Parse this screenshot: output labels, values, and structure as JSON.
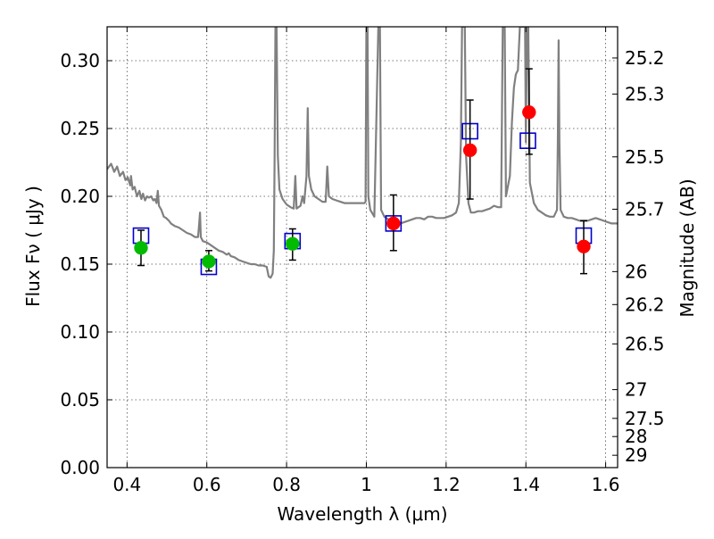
{
  "chart_data": {
    "type": "scatter",
    "xlabel": "Wavelength  λ (μm)",
    "ylabel_left": "Flux  Fν  ( μJy )",
    "ylabel_right": "Magnitude (AB)",
    "xlim": [
      0.35,
      1.63
    ],
    "ylim": [
      0.0,
      0.325
    ],
    "grid": true,
    "xticks": [
      0.4,
      0.6,
      0.8,
      1.0,
      1.2,
      1.4,
      1.6
    ],
    "xtick_labels": [
      "0.4",
      "0.6",
      "0.8",
      "1",
      "1.2",
      "1.4",
      "1.6"
    ],
    "yticks": [
      0.0,
      0.05,
      0.1,
      0.15,
      0.2,
      0.25,
      0.3
    ],
    "ytick_labels": [
      "0.00",
      "0.05",
      "0.10",
      "0.15",
      "0.20",
      "0.25",
      "0.30"
    ],
    "right_ticks": [
      {
        "label": "25.2",
        "flux": 0.302
      },
      {
        "label": "25.3",
        "flux": 0.2754
      },
      {
        "label": "25.5",
        "flux": 0.2291
      },
      {
        "label": "25.7",
        "flux": 0.1905
      },
      {
        "label": "26",
        "flux": 0.1445
      },
      {
        "label": "26.2",
        "flux": 0.1202
      },
      {
        "label": "26.5",
        "flux": 0.0912
      },
      {
        "label": "27",
        "flux": 0.0575
      },
      {
        "label": "27.5",
        "flux": 0.0363
      },
      {
        "label": "28",
        "flux": 0.0229
      },
      {
        "label": "29",
        "flux": 0.0091
      }
    ],
    "colors": {
      "model": "#808080",
      "observed_optical": "#00bb00",
      "observed_ir": "#ff0000",
      "model_photometry": "#0000cc",
      "errorbar": "#000000"
    },
    "series": [
      {
        "id": "model_sed",
        "kind": "line",
        "points": [
          [
            0.35,
            0.22
          ],
          [
            0.36,
            0.224
          ],
          [
            0.368,
            0.218
          ],
          [
            0.375,
            0.222
          ],
          [
            0.382,
            0.215
          ],
          [
            0.39,
            0.218
          ],
          [
            0.396,
            0.212
          ],
          [
            0.402,
            0.214
          ],
          [
            0.408,
            0.208
          ],
          [
            0.41,
            0.215
          ],
          [
            0.414,
            0.205
          ],
          [
            0.419,
            0.207
          ],
          [
            0.425,
            0.2
          ],
          [
            0.431,
            0.204
          ],
          [
            0.436,
            0.198
          ],
          [
            0.44,
            0.202
          ],
          [
            0.445,
            0.197
          ],
          [
            0.45,
            0.2
          ],
          [
            0.455,
            0.199
          ],
          [
            0.46,
            0.2
          ],
          [
            0.466,
            0.197
          ],
          [
            0.47,
            0.198
          ],
          [
            0.474,
            0.195
          ],
          [
            0.477,
            0.204
          ],
          [
            0.48,
            0.193
          ],
          [
            0.486,
            0.19
          ],
          [
            0.492,
            0.185
          ],
          [
            0.498,
            0.184
          ],
          [
            0.505,
            0.182
          ],
          [
            0.51,
            0.18
          ],
          [
            0.52,
            0.178
          ],
          [
            0.53,
            0.177
          ],
          [
            0.54,
            0.175
          ],
          [
            0.55,
            0.173
          ],
          [
            0.56,
            0.172
          ],
          [
            0.57,
            0.17
          ],
          [
            0.578,
            0.17
          ],
          [
            0.581,
            0.18
          ],
          [
            0.583,
            0.188
          ],
          [
            0.585,
            0.17
          ],
          [
            0.59,
            0.167
          ],
          [
            0.6,
            0.166
          ],
          [
            0.61,
            0.164
          ],
          [
            0.62,
            0.162
          ],
          [
            0.63,
            0.16
          ],
          [
            0.64,
            0.159
          ],
          [
            0.65,
            0.157
          ],
          [
            0.655,
            0.158
          ],
          [
            0.66,
            0.156
          ],
          [
            0.67,
            0.155
          ],
          [
            0.68,
            0.153
          ],
          [
            0.69,
            0.152
          ],
          [
            0.7,
            0.151
          ],
          [
            0.71,
            0.15
          ],
          [
            0.72,
            0.15
          ],
          [
            0.73,
            0.149
          ],
          [
            0.74,
            0.149
          ],
          [
            0.75,
            0.148
          ],
          [
            0.755,
            0.141
          ],
          [
            0.76,
            0.14
          ],
          [
            0.765,
            0.143
          ],
          [
            0.768,
            0.16
          ],
          [
            0.77,
            0.23
          ],
          [
            0.772,
            0.325
          ],
          [
            0.775,
            0.325
          ],
          [
            0.778,
            0.23
          ],
          [
            0.782,
            0.205
          ],
          [
            0.79,
            0.198
          ],
          [
            0.8,
            0.194
          ],
          [
            0.81,
            0.192
          ],
          [
            0.818,
            0.191
          ],
          [
            0.822,
            0.215
          ],
          [
            0.825,
            0.191
          ],
          [
            0.835,
            0.193
          ],
          [
            0.84,
            0.2
          ],
          [
            0.844,
            0.195
          ],
          [
            0.85,
            0.215
          ],
          [
            0.853,
            0.265
          ],
          [
            0.856,
            0.215
          ],
          [
            0.862,
            0.205
          ],
          [
            0.87,
            0.2
          ],
          [
            0.88,
            0.198
          ],
          [
            0.89,
            0.196
          ],
          [
            0.898,
            0.196
          ],
          [
            0.902,
            0.222
          ],
          [
            0.906,
            0.2
          ],
          [
            0.915,
            0.198
          ],
          [
            0.925,
            0.197
          ],
          [
            0.935,
            0.196
          ],
          [
            0.945,
            0.195
          ],
          [
            0.955,
            0.195
          ],
          [
            0.965,
            0.195
          ],
          [
            0.975,
            0.195
          ],
          [
            0.985,
            0.195
          ],
          [
            0.995,
            0.195
          ],
          [
            0.998,
            0.196
          ],
          [
            1.0,
            0.325
          ],
          [
            1.003,
            0.325
          ],
          [
            1.005,
            0.2
          ],
          [
            1.01,
            0.19
          ],
          [
            1.02,
            0.185
          ],
          [
            1.03,
            0.325
          ],
          [
            1.034,
            0.325
          ],
          [
            1.037,
            0.19
          ],
          [
            1.045,
            0.185
          ],
          [
            1.055,
            0.183
          ],
          [
            1.065,
            0.181
          ],
          [
            1.075,
            0.18
          ],
          [
            1.085,
            0.18
          ],
          [
            1.095,
            0.181
          ],
          [
            1.105,
            0.182
          ],
          [
            1.115,
            0.183
          ],
          [
            1.125,
            0.184
          ],
          [
            1.135,
            0.184
          ],
          [
            1.145,
            0.183
          ],
          [
            1.155,
            0.185
          ],
          [
            1.165,
            0.185
          ],
          [
            1.175,
            0.184
          ],
          [
            1.185,
            0.184
          ],
          [
            1.195,
            0.184
          ],
          [
            1.205,
            0.185
          ],
          [
            1.215,
            0.186
          ],
          [
            1.225,
            0.188
          ],
          [
            1.232,
            0.195
          ],
          [
            1.237,
            0.24
          ],
          [
            1.24,
            0.325
          ],
          [
            1.247,
            0.325
          ],
          [
            1.25,
            0.23
          ],
          [
            1.256,
            0.195
          ],
          [
            1.262,
            0.188
          ],
          [
            1.27,
            0.188
          ],
          [
            1.28,
            0.189
          ],
          [
            1.29,
            0.189
          ],
          [
            1.3,
            0.19
          ],
          [
            1.31,
            0.191
          ],
          [
            1.32,
            0.193
          ],
          [
            1.33,
            0.192
          ],
          [
            1.338,
            0.192
          ],
          [
            1.342,
            0.325
          ],
          [
            1.347,
            0.325
          ],
          [
            1.35,
            0.2
          ],
          [
            1.36,
            0.215
          ],
          [
            1.365,
            0.255
          ],
          [
            1.37,
            0.28
          ],
          [
            1.375,
            0.29
          ],
          [
            1.38,
            0.293
          ],
          [
            1.385,
            0.325
          ],
          [
            1.398,
            0.325
          ],
          [
            1.4,
            0.24
          ],
          [
            1.403,
            0.325
          ],
          [
            1.406,
            0.325
          ],
          [
            1.41,
            0.21
          ],
          [
            1.42,
            0.195
          ],
          [
            1.43,
            0.19
          ],
          [
            1.44,
            0.188
          ],
          [
            1.45,
            0.186
          ],
          [
            1.46,
            0.185
          ],
          [
            1.47,
            0.185
          ],
          [
            1.478,
            0.19
          ],
          [
            1.48,
            0.24
          ],
          [
            1.482,
            0.315
          ],
          [
            1.484,
            0.24
          ],
          [
            1.487,
            0.19
          ],
          [
            1.495,
            0.185
          ],
          [
            1.505,
            0.184
          ],
          [
            1.515,
            0.184
          ],
          [
            1.525,
            0.183
          ],
          [
            1.535,
            0.182
          ],
          [
            1.545,
            0.182
          ],
          [
            1.555,
            0.182
          ],
          [
            1.565,
            0.183
          ],
          [
            1.575,
            0.184
          ],
          [
            1.585,
            0.183
          ],
          [
            1.595,
            0.182
          ],
          [
            1.605,
            0.181
          ],
          [
            1.615,
            0.18
          ],
          [
            1.63,
            0.18
          ]
        ]
      },
      {
        "id": "model_photometry",
        "kind": "open_square",
        "points": [
          [
            0.435,
            0.171
          ],
          [
            0.605,
            0.148
          ],
          [
            0.815,
            0.167
          ],
          [
            1.068,
            0.18
          ],
          [
            1.26,
            0.248
          ],
          [
            1.405,
            0.241
          ],
          [
            1.545,
            0.171
          ]
        ]
      },
      {
        "id": "observed_optical",
        "kind": "filled_circle",
        "color_key": "observed_optical",
        "points": [
          {
            "x": 0.435,
            "y": 0.162,
            "ylo": 0.149,
            "yhi": 0.175
          },
          {
            "x": 0.605,
            "y": 0.152,
            "ylo": 0.145,
            "yhi": 0.16
          },
          {
            "x": 0.815,
            "y": 0.165,
            "ylo": 0.153,
            "yhi": 0.176
          }
        ]
      },
      {
        "id": "observed_ir",
        "kind": "filled_circle",
        "color_key": "observed_ir",
        "points": [
          {
            "x": 1.068,
            "y": 0.18,
            "ylo": 0.16,
            "yhi": 0.201
          },
          {
            "x": 1.26,
            "y": 0.234,
            "ylo": 0.198,
            "yhi": 0.271
          },
          {
            "x": 1.408,
            "y": 0.262,
            "ylo": 0.231,
            "yhi": 0.294
          },
          {
            "x": 1.545,
            "y": 0.163,
            "ylo": 0.143,
            "yhi": 0.182
          }
        ]
      }
    ]
  }
}
